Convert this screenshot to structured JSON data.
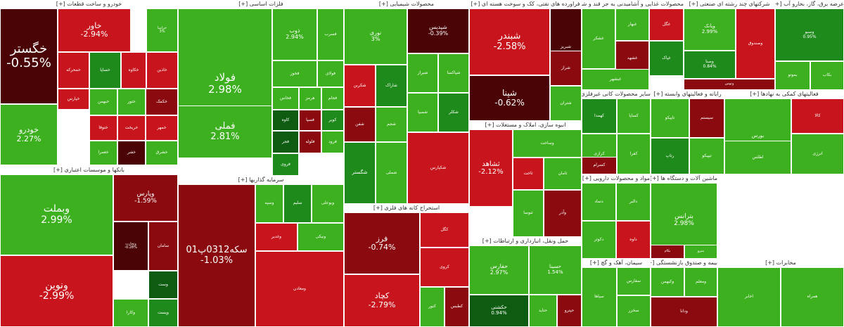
{
  "colors": {
    "g1": "#3cb01e",
    "g2": "#1f8a1c",
    "g3": "#0e5c12",
    "r1": "#c8141c",
    "r2": "#8a0a10",
    "r3": "#4a0406"
  },
  "sectors": [
    {
      "title": "خودرو و ساخت قطعات [+]",
      "tiles": [
        {
          "name": "خگستر",
          "pct": "-0.55%"
        },
        {
          "name": "خاور",
          "pct": "-2.94%"
        },
        {
          "name": "خودرو",
          "pct": "2.27%"
        },
        {
          "name": "خمحرکه"
        },
        {
          "name": "خساپا"
        },
        {
          "name": "خکاوه"
        },
        {
          "name": "خزامیا",
          "pct": "3%"
        },
        {
          "name": "خپارس"
        },
        {
          "name": "خاذین"
        },
        {
          "name": "خبهمن"
        },
        {
          "name": "ختور"
        },
        {
          "name": "خکمک"
        },
        {
          "name": "خریخت"
        },
        {
          "name": "خمهر"
        },
        {
          "name": "ختوقا"
        },
        {
          "name": "خعمرا"
        },
        {
          "name": "خفنر"
        },
        {
          "name": "خشرق"
        }
      ]
    },
    {
      "title": "بانکها و موسسات اعتباری [+]",
      "tiles": [
        {
          "name": "وبملت",
          "pct": "2.99%"
        },
        {
          "name": "ونوین",
          "pct": "-2.99%"
        },
        {
          "name": "وپارس",
          "pct": "-1.59%"
        },
        {
          "name": "وتجارت",
          "pct": "-0.28%"
        },
        {
          "name": "سامان"
        },
        {
          "name": "وست"
        },
        {
          "name": "وکارا"
        },
        {
          "name": "وپست"
        }
      ]
    },
    {
      "title": "فلزات اساسی [+]",
      "tiles": [
        {
          "name": "فولاد",
          "pct": "2.98%"
        },
        {
          "name": "فملی",
          "pct": "2.81%"
        },
        {
          "name": "ذوب",
          "pct": "2.94%"
        },
        {
          "name": "فخوز"
        },
        {
          "name": "فسرب"
        },
        {
          "name": "فولای"
        },
        {
          "name": "فخاس"
        },
        {
          "name": "هرمز"
        },
        {
          "name": "کاوه"
        },
        {
          "name": "فجر"
        },
        {
          "name": "فسپا"
        },
        {
          "name": "فجام"
        },
        {
          "name": "فلوله"
        },
        {
          "name": "کویر"
        },
        {
          "name": "فرود"
        },
        {
          "name": "فروی"
        }
      ]
    },
    {
      "title": "سرمایه گذاریها [+]",
      "tiles": [
        {
          "name": "سکه0312پ01",
          "pct": "-1.03%"
        },
        {
          "name": "وسپه"
        },
        {
          "name": "سلیم"
        },
        {
          "name": "وبوعلی"
        },
        {
          "name": "وغدیر"
        },
        {
          "name": "ونیکی"
        },
        {
          "name": "ومعادن"
        }
      ]
    },
    {
      "title": "محصولات شیمیایی [+]",
      "tiles": [
        {
          "name": "نوری",
          "pct": "3%"
        },
        {
          "name": "شپدیس",
          "pct": "-0.39%"
        },
        {
          "name": "شکربن"
        },
        {
          "name": "شاراک"
        },
        {
          "name": "شیراز"
        },
        {
          "name": "شپاکسا"
        },
        {
          "name": "شسپا"
        },
        {
          "name": "شکلر"
        },
        {
          "name": "شفن"
        },
        {
          "name": "شجم"
        },
        {
          "name": "شگستر"
        },
        {
          "name": "شملی"
        },
        {
          "name": "شکپارس"
        }
      ]
    },
    {
      "title": "استخراج کانه های فلزی [+]",
      "tiles": [
        {
          "name": "فرز",
          "pct": "-0.74%"
        },
        {
          "name": "کچاد",
          "pct": "-2.79%"
        },
        {
          "name": "کگل"
        },
        {
          "name": "کروی"
        },
        {
          "name": "کنور"
        },
        {
          "name": "کطبس"
        }
      ]
    },
    {
      "title": "فراورده های نفتی، کک و سوخت هسته ای [+]",
      "tiles": [
        {
          "name": "شبندر",
          "pct": "-2.58%"
        },
        {
          "name": "شپنا",
          "pct": "-0.62%"
        },
        {
          "name": "شبریز"
        },
        {
          "name": "شتران"
        },
        {
          "name": "شراز"
        }
      ]
    },
    {
      "title": "انبوه سازی، املاک و مستغلات [+]",
      "tiles": [
        {
          "name": "ثشاهد",
          "pct": "-2.12%"
        },
        {
          "name": "وساخت"
        },
        {
          "name": "ثاخت"
        },
        {
          "name": "ثامان"
        },
        {
          "name": "ثنوسا"
        },
        {
          "name": "وآذر"
        }
      ]
    },
    {
      "title": "حمل ونقل، انبارداری و ارتباطات [+]",
      "tiles": [
        {
          "name": "حفارس",
          "pct": "2.97%"
        },
        {
          "name": "حسینا",
          "pct": "1.54%"
        },
        {
          "name": "حکشتی",
          "pct": "0.94%"
        },
        {
          "name": "حتاید"
        },
        {
          "name": "حپترو"
        }
      ]
    },
    {
      "title": "محصولات غذایی و آشامیدنی به جز قند و شکر [+]",
      "tiles": [
        {
          "name": "غشکر"
        },
        {
          "name": "غبهار"
        },
        {
          "name": "غگل"
        },
        {
          "name": "غشهد"
        },
        {
          "name": "غپاک"
        },
        {
          "name": "غبشهر"
        }
      ]
    },
    {
      "title": "شرکتهای چند رشته ای صنعتی [+]",
      "tiles": [
        {
          "name": "وپانک",
          "pct": "2.99%"
        },
        {
          "name": "وصنا",
          "pct": "0.84%"
        },
        {
          "name": "وصندوق"
        },
        {
          "name": "وتوس"
        }
      ]
    },
    {
      "title": "عرضه برق، گاز، بخارو آب [+]",
      "tiles": [
        {
          "name": "وسبو",
          "pct": "0.95%"
        },
        {
          "name": "بموتو"
        },
        {
          "name": "بکاب"
        }
      ]
    },
    {
      "title": "سایر محصولات کانی غیرفلزی [+]",
      "tiles": [
        {
          "name": "کهمدا"
        },
        {
          "name": "کساپا"
        },
        {
          "name": "کرازی"
        },
        {
          "name": "کفرا"
        },
        {
          "name": "کسرام"
        }
      ]
    },
    {
      "title": "رایانه و فعالیتهای وابسته [+]",
      "tiles": [
        {
          "name": "تاپیکو"
        },
        {
          "name": "سیستم"
        },
        {
          "name": "رتاپ"
        },
        {
          "name": "تیپیکو"
        }
      ]
    },
    {
      "title": "فعالیتهای کمکی به نهادها [+]",
      "tiles": [
        {
          "name": "بورس"
        },
        {
          "name": "کالا"
        },
        {
          "name": "انرژی"
        },
        {
          "name": "اطلس"
        }
      ]
    },
    {
      "title": "ماشین آلات و دستگاه ها [+]",
      "tiles": [
        {
          "name": "بترانس",
          "pct": "2.98%"
        },
        {
          "name": "بکام"
        },
        {
          "name": "بنیرو"
        }
      ]
    },
    {
      "title": "مواد و محصولات دارویی [+]",
      "tiles": [
        {
          "name": "دتماد"
        },
        {
          "name": "دالبر"
        },
        {
          "name": "دکوثر"
        },
        {
          "name": "داوه"
        }
      ]
    },
    {
      "title": "بیمه و صندوق بازنشستگی [+]",
      "tiles": [
        {
          "name": "وکبهمن"
        },
        {
          "name": "ومعلم"
        },
        {
          "name": "ودانا"
        }
      ]
    },
    {
      "title": "سیمان، آهک و گچ [+]",
      "tiles": [
        {
          "name": "سپاها"
        },
        {
          "name": "سفارس"
        },
        {
          "name": "سخزر"
        }
      ]
    },
    {
      "title": "مخابرات [+]",
      "tiles": [
        {
          "name": "اخابر"
        },
        {
          "name": "همراه"
        }
      ]
    }
  ]
}
